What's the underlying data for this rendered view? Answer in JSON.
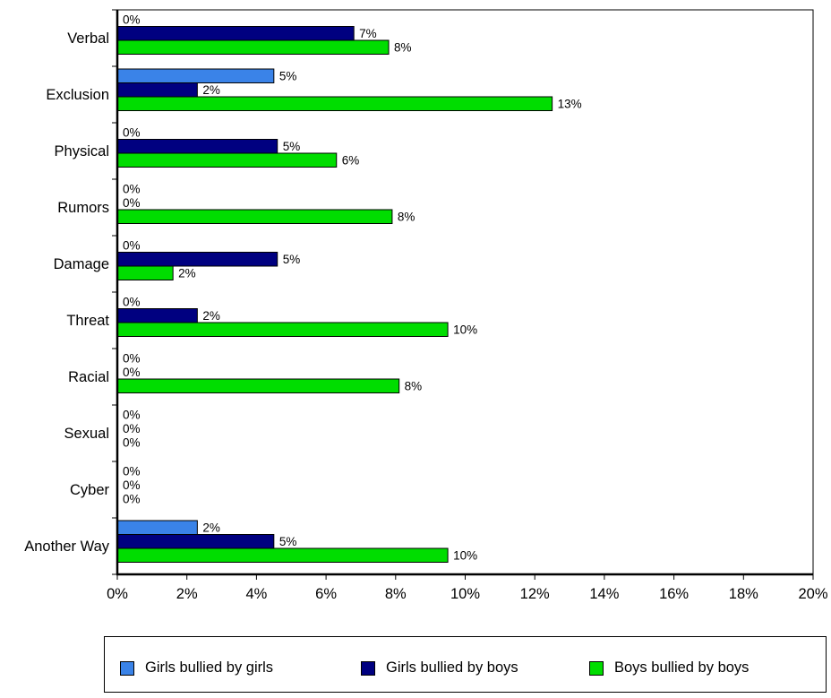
{
  "chart_data": {
    "type": "bar",
    "orientation": "horizontal",
    "categories": [
      "Verbal",
      "Exclusion",
      "Physical",
      "Rumors",
      "Damage",
      "Threat",
      "Racial",
      "Sexual",
      "Cyber",
      "Another Way"
    ],
    "series": [
      {
        "name": "Girls bullied by girls",
        "color": "#3a83e8",
        "values": [
          0,
          4.5,
          0,
          0,
          0,
          0,
          0,
          0,
          0,
          2.3
        ],
        "labels": [
          "0%",
          "5%",
          "0%",
          "0%",
          "0%",
          "0%",
          "0%",
          "0%",
          "0%",
          "2%"
        ]
      },
      {
        "name": "Girls bullied by boys",
        "color": "#000080",
        "values": [
          6.8,
          2.3,
          4.6,
          0,
          4.6,
          2.3,
          0,
          0,
          0,
          4.5
        ],
        "labels": [
          "7%",
          "2%",
          "5%",
          "0%",
          "5%",
          "2%",
          "0%",
          "0%",
          "0%",
          "5%"
        ]
      },
      {
        "name": "Boys bullied by boys",
        "color": "#00dd00",
        "values": [
          7.8,
          12.5,
          6.3,
          7.9,
          1.6,
          9.5,
          8.1,
          0,
          0,
          9.5
        ],
        "labels": [
          "8%",
          "13%",
          "6%",
          "8%",
          "2%",
          "10%",
          "8%",
          "0%",
          "0%",
          "10%"
        ]
      }
    ],
    "xlim": [
      0,
      20
    ],
    "xticks": [
      "0%",
      "2%",
      "4%",
      "6%",
      "8%",
      "10%",
      "12%",
      "14%",
      "16%",
      "18%",
      "20%"
    ],
    "grid": false,
    "legend_position": "bottom"
  }
}
